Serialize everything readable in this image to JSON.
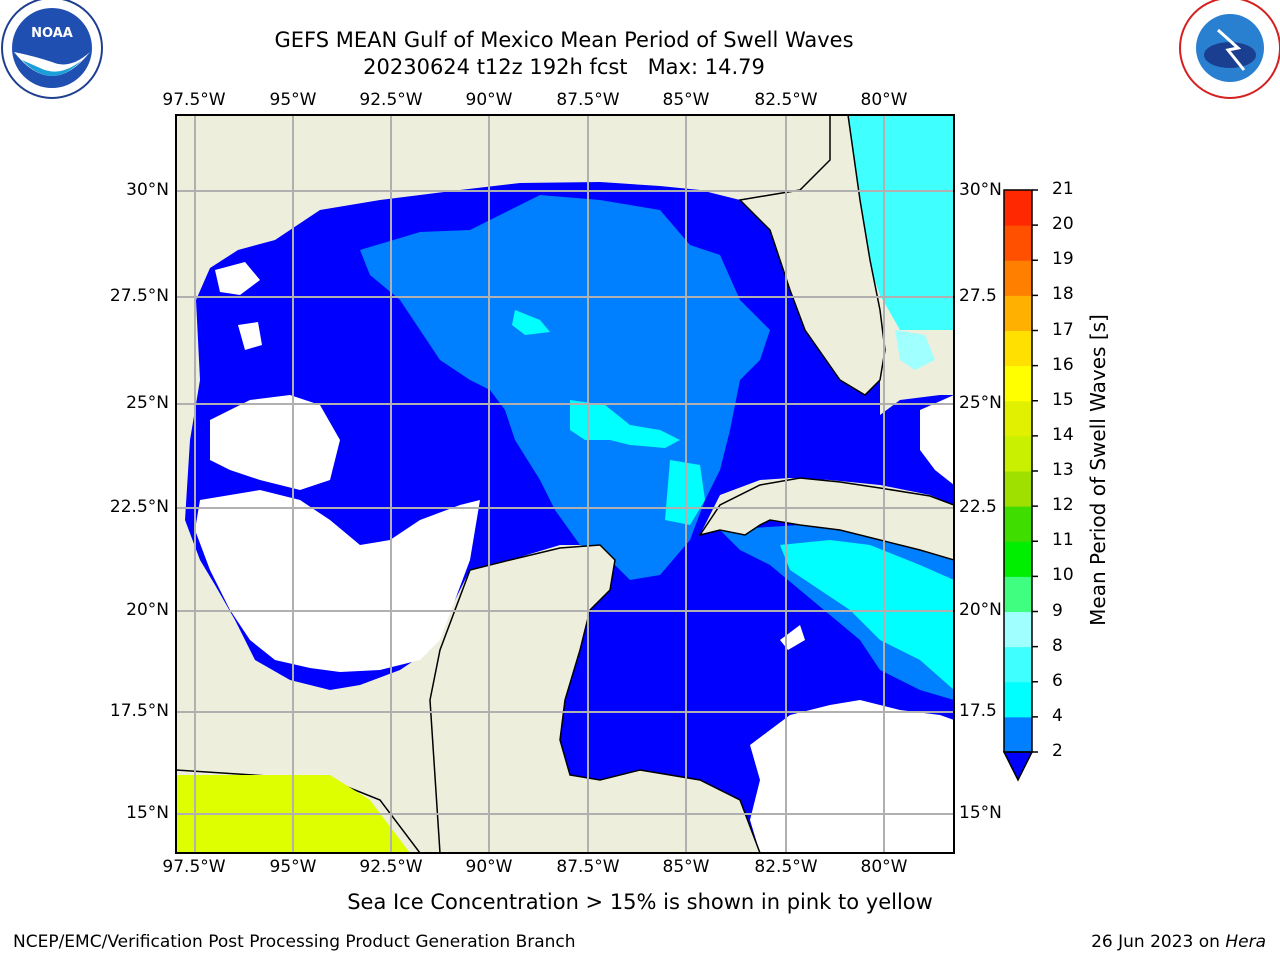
{
  "title_line1": "GEFS MEAN Gulf of Mexico Mean Period of Swell Waves",
  "title_line2": "20230624 t12z 192h fcst   Max: 14.79",
  "logos": {
    "left": "noaa-logo",
    "right": "nws-logo"
  },
  "map": {
    "lon_ticks": [
      "97.5°W",
      "95°W",
      "92.5°W",
      "90°W",
      "87.5°W",
      "85°W",
      "82.5°W",
      "80°W"
    ],
    "lat_ticks_left": [
      "30°N",
      "27.5°N",
      "25°N",
      "22.5°N",
      "20°N",
      "17.5°N",
      "15°N"
    ],
    "lat_ticks_right": [
      "30°N",
      "27.5",
      "25°N",
      "22.5",
      "20°N",
      "17.5",
      "15°N"
    ],
    "colors": {
      "land": "#eeeedd",
      "ocean_low": "#0000ff",
      "band_2_4": "#0080ff",
      "band_4_6": "#00ffff",
      "band_6_8": "#40ffff",
      "band_8_9": "#a0ffff",
      "sea_ice": "#ddff00"
    }
  },
  "colorbar": {
    "label": "Mean Period of Swell Waves [s]",
    "ticks": [
      "2",
      "4",
      "6",
      "8",
      "9",
      "10",
      "11",
      "12",
      "13",
      "14",
      "15",
      "16",
      "17",
      "18",
      "19",
      "20",
      "21"
    ],
    "colors": [
      "#0080ff",
      "#00ffff",
      "#40ffff",
      "#a0ffff",
      "#40ff80",
      "#00ee00",
      "#40dd00",
      "#a0e000",
      "#c8f000",
      "#e0f000",
      "#ffff00",
      "#ffe000",
      "#ffb000",
      "#ff8000",
      "#ff5000",
      "#ff2800",
      "#ff0000"
    ]
  },
  "footer_note": "Sea Ice Concentration > 15% is shown in pink to yellow",
  "credit": "NCEP/EMC/Verification Post Processing Product Generation Branch",
  "date_prefix": "26 Jun 2023 on ",
  "date_machine": "Hera"
}
